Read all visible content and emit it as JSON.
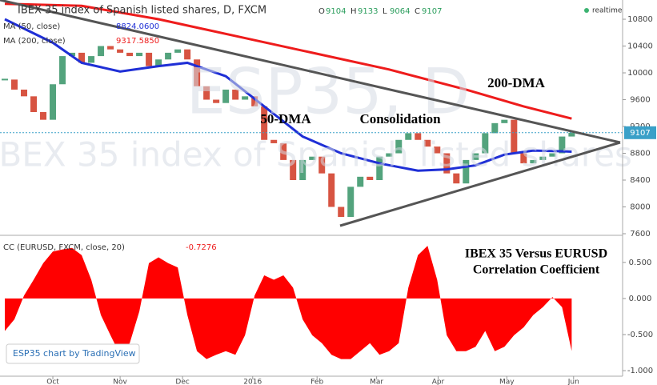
{
  "chart_data": [
    {
      "type": "candlestick",
      "title": "IBEX 35 index of Spanish listed shares, D, FXCM",
      "status": "realtime",
      "ohlc": [
        {
          "label": "O",
          "value": 9104
        },
        {
          "label": "H",
          "value": 9133
        },
        {
          "label": "L",
          "value": 9064
        },
        {
          "label": "C",
          "value": 9107
        }
      ],
      "watermark": [
        "ESP35, D",
        "IBEX 35 index of Spanish listed shares"
      ],
      "annotations": [
        "50-DMA",
        "Consolidation",
        "200-DMA"
      ],
      "xlim": [
        -0.5,
        64.3
      ],
      "ylim": [
        7600,
        11087
      ],
      "yticks": [
        7600,
        8000,
        8400,
        8800,
        9200,
        9600,
        10000,
        10400,
        10800
      ],
      "up_color": "#53a37d",
      "down_color": "#d75442",
      "x": [
        0,
        1,
        2,
        3,
        4,
        5,
        6,
        7,
        8,
        9,
        10,
        11,
        12,
        13,
        14,
        15,
        16,
        17,
        18,
        19,
        20,
        21,
        22,
        23,
        24,
        25,
        26,
        27,
        28,
        29,
        30,
        31,
        32,
        33,
        34,
        35,
        36,
        37,
        38,
        39,
        40,
        41,
        42,
        43,
        44,
        45,
        46,
        47,
        48,
        49,
        50,
        51,
        52,
        53,
        54,
        55,
        56,
        57,
        58,
        59
      ],
      "values": [
        9900,
        9750,
        9650,
        9415,
        9300,
        9830,
        10250,
        10300,
        10150,
        10250,
        10400,
        10350,
        10300,
        10250,
        10300,
        10100,
        10200,
        10300,
        10350,
        10200,
        9800,
        9600,
        9550,
        9750,
        9600,
        9650,
        9500,
        9000,
        8950,
        8700,
        8400,
        8700,
        8750,
        8500,
        8000,
        7850,
        8300,
        8450,
        8400,
        8750,
        8800,
        9000,
        9100,
        9000,
        8900,
        8800,
        8500,
        8350,
        8700,
        8800,
        9100,
        9250,
        9300,
        8800,
        8650,
        8700,
        8750,
        8800,
        9050,
        9107
      ],
      "lines": [
        {
          "name": "MA (50, close)",
          "color": "#1f2fd6",
          "legend_value": "8824.0600",
          "x": [
            0,
            5,
            8,
            12,
            16,
            19,
            23,
            27,
            31,
            35,
            39,
            43,
            46,
            49,
            52,
            55,
            58,
            59
          ],
          "values": [
            10800,
            10450,
            10150,
            10020,
            10100,
            10150,
            9950,
            9500,
            9050,
            8800,
            8650,
            8540,
            8560,
            8620,
            8780,
            8840,
            8830,
            8824.06
          ]
        },
        {
          "name": "MA (200, close)",
          "color": "#ee1c1c",
          "legend_value": "9317.5850",
          "x": [
            0,
            8,
            16,
            24,
            32,
            40,
            48,
            54,
            59
          ],
          "values": [
            11030,
            11000,
            10800,
            10550,
            10300,
            10050,
            9750,
            9500,
            9317.585
          ]
        }
      ]
    },
    {
      "type": "area",
      "title": "CC (EURUSD, FXCM, close, 20)",
      "annotation": [
        "IBEX 35 Versus EURUSD",
        "Correlation Coefficient"
      ],
      "credit": "ESP35 chart by TradingView",
      "color": "#ff0000",
      "xlim": [
        -0.5,
        64.3
      ],
      "ylim": [
        -1.077,
        0.853
      ],
      "yticks": [
        {
          "value": 0.5,
          "label": "0.500"
        },
        {
          "value": 0,
          "label": "0.000"
        },
        {
          "value": -0.5,
          "label": "-0.500"
        },
        {
          "value": -1,
          "label": "-1.000"
        }
      ],
      "xticks": [
        {
          "value": 5,
          "label": "Oct"
        },
        {
          "value": 12,
          "label": "Nov"
        },
        {
          "value": 18.5,
          "label": "Dec"
        },
        {
          "value": 25.8,
          "label": "2016"
        },
        {
          "value": 32.5,
          "label": "Feb"
        },
        {
          "value": 38.7,
          "label": "Mar"
        },
        {
          "value": 45.1,
          "label": "Apr"
        },
        {
          "value": 52.25,
          "label": "May"
        },
        {
          "value": 59.2,
          "label": "Jun"
        }
      ],
      "x": [
        0,
        1,
        2,
        3,
        4,
        5,
        6,
        7,
        8,
        9,
        10,
        11,
        12,
        13,
        14,
        15,
        16,
        17,
        18,
        19,
        20,
        21,
        22,
        23,
        24,
        25,
        26,
        27,
        28,
        29,
        30,
        31,
        32,
        33,
        34,
        35,
        36,
        37,
        38,
        39,
        40,
        41,
        42,
        43,
        44,
        45,
        46,
        47,
        48,
        49,
        50,
        51,
        52,
        53,
        54,
        55,
        56,
        57,
        58,
        59
      ],
      "values": [
        -0.45,
        -0.29,
        0.04,
        0.26,
        0.49,
        0.65,
        0.68,
        0.7,
        0.6,
        0.26,
        -0.23,
        -0.51,
        -0.78,
        -0.62,
        -0.18,
        0.49,
        0.57,
        0.49,
        0.43,
        -0.23,
        -0.73,
        -0.84,
        -0.78,
        -0.73,
        -0.78,
        -0.51,
        0.04,
        0.32,
        0.26,
        0.32,
        0.15,
        -0.29,
        -0.51,
        -0.62,
        -0.78,
        -0.84,
        -0.84,
        -0.73,
        -0.62,
        -0.78,
        -0.73,
        -0.62,
        0.15,
        0.6,
        0.73,
        0.26,
        -0.51,
        -0.73,
        -0.73,
        -0.67,
        -0.45,
        -0.73,
        -0.67,
        -0.51,
        -0.4,
        -0.23,
        -0.12,
        0.02,
        -0.12,
        -0.7276
      ]
    }
  ]
}
